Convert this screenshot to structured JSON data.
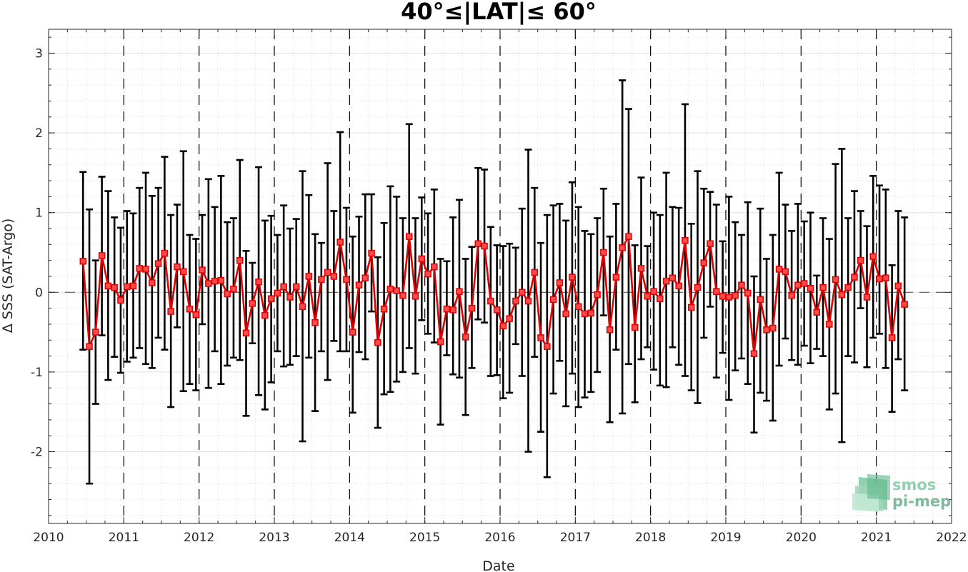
{
  "chart_data": {
    "type": "line",
    "title": "40°≤|LAT|≤ 60°",
    "xlabel": "Date",
    "ylabel": "Δ SSS (SAT-Argo)",
    "xlim": [
      2010,
      2022
    ],
    "ylim": [
      -2.9,
      3.3
    ],
    "x_ticks": [
      2010,
      2011,
      2012,
      2013,
      2014,
      2015,
      2016,
      2017,
      2018,
      2019,
      2020,
      2021,
      2022
    ],
    "y_ticks": [
      -2,
      -1,
      0,
      1,
      2,
      3
    ],
    "year_lines": [
      2011,
      2012,
      2013,
      2014,
      2015,
      2016,
      2017,
      2018,
      2019,
      2020,
      2021
    ],
    "zero_line": 0,
    "grid": "minor dotted",
    "colors": {
      "series": "#e00000",
      "errorbar": "#000000",
      "zero_line": "#555555"
    },
    "series": [
      {
        "start_year": 2010,
        "start_month": 6,
        "y": [
          0.39,
          -0.68,
          -0.5,
          0.46,
          0.08,
          0.06,
          -0.1,
          0.07,
          0.08,
          0.3,
          0.29,
          0.12,
          0.36,
          0.49,
          -0.24,
          0.32,
          0.26,
          -0.21,
          -0.28,
          0.28,
          0.11,
          0.14,
          0.15,
          -0.02,
          0.04,
          0.4,
          -0.51,
          -0.14,
          0.13,
          -0.29,
          -0.08,
          -0.01,
          0.07,
          -0.06,
          0.07,
          -0.18,
          0.2,
          -0.38,
          0.16,
          0.25,
          0.2,
          0.63,
          0.16,
          -0.5,
          0.09,
          0.18,
          0.49,
          -0.63,
          -0.21,
          0.04,
          0.02,
          -0.04,
          0.7,
          -0.05,
          0.42,
          0.23,
          0.32,
          -0.62,
          -0.21,
          -0.22,
          0.01,
          -0.56,
          -0.2,
          0.61,
          0.58,
          -0.11,
          -0.22,
          -0.42,
          -0.33,
          -0.11,
          0.0,
          -0.11,
          0.25,
          -0.57,
          -0.68,
          -0.09,
          0.12,
          -0.27,
          0.19,
          -0.18,
          -0.27,
          -0.26,
          -0.03,
          0.5,
          -0.47,
          0.19,
          0.56,
          0.7,
          -0.44,
          0.3,
          -0.05,
          0.01,
          -0.08,
          0.14,
          0.18,
          0.08,
          0.65,
          -0.19,
          0.06,
          0.37,
          0.61,
          0.01,
          -0.05,
          -0.06,
          -0.04,
          0.09,
          -0.01,
          -0.77,
          -0.09,
          -0.47,
          -0.45,
          0.29,
          0.26,
          -0.04,
          0.09,
          0.11,
          0.05,
          -0.25,
          0.06,
          -0.4,
          0.16,
          -0.03,
          0.06,
          0.19,
          0.4,
          -0.06,
          0.45,
          0.17,
          0.18,
          -0.57,
          0.08,
          -0.15
        ],
        "upper": [
          1.51,
          1.04,
          0.4,
          1.45,
          1.27,
          0.94,
          0.81,
          1.02,
          0.99,
          1.31,
          1.5,
          1.21,
          1.31,
          1.7,
          0.97,
          1.1,
          1.77,
          0.72,
          0.67,
          0.97,
          1.42,
          1.07,
          1.46,
          0.88,
          0.93,
          1.66,
          0.52,
          0.37,
          1.57,
          0.9,
          0.96,
          0.72,
          1.09,
          0.8,
          0.92,
          1.52,
          1.22,
          0.73,
          0.62,
          1.62,
          1.02,
          2.01,
          1.06,
          0.7,
          0.95,
          1.23,
          1.23,
          0.44,
          0.87,
          1.33,
          1.2,
          0.93,
          2.11,
          0.93,
          1.19,
          0.99,
          1.29,
          0.42,
          0.39,
          0.94,
          1.16,
          0.42,
          0.57,
          1.56,
          1.54,
          0.82,
          0.59,
          0.58,
          0.61,
          0.56,
          1.05,
          1.79,
          1.31,
          0.62,
          0.97,
          1.09,
          1.11,
          0.9,
          1.38,
          1.07,
          0.77,
          0.73,
          0.93,
          1.3,
          0.7,
          1.11,
          2.66,
          2.3,
          0.59,
          1.44,
          0.58,
          1.0,
          0.97,
          1.5,
          1.07,
          1.06,
          2.36,
          0.86,
          1.52,
          1.3,
          1.26,
          1.1,
          0.64,
          1.2,
          0.88,
          0.72,
          1.13,
          0.2,
          1.05,
          0.42,
          0.72,
          1.5,
          1.1,
          0.77,
          1.11,
          0.89,
          1.0,
          0.21,
          0.93,
          0.67,
          1.61,
          1.8,
          0.93,
          1.27,
          1.02,
          0.83,
          1.46,
          1.34,
          1.29,
          0.34,
          1.02,
          0.94
        ],
        "lower": [
          -0.72,
          -2.4,
          -1.4,
          -0.54,
          -1.1,
          -0.81,
          -1.01,
          -0.87,
          -0.82,
          -0.7,
          -0.9,
          -0.95,
          -0.57,
          -0.72,
          -1.44,
          -0.44,
          -1.24,
          -1.15,
          -1.23,
          -0.4,
          -1.2,
          -0.74,
          -1.15,
          -0.92,
          -0.82,
          -0.85,
          -1.55,
          -0.64,
          -1.29,
          -1.47,
          -1.13,
          -0.74,
          -0.93,
          -0.91,
          -0.8,
          -1.87,
          -0.82,
          -1.49,
          -0.74,
          -1.1,
          -0.61,
          -0.74,
          -0.74,
          -1.51,
          -0.75,
          -0.84,
          -0.24,
          -1.7,
          -1.28,
          -1.25,
          -1.12,
          -1.0,
          -0.7,
          -1.02,
          -0.35,
          -0.52,
          -0.63,
          -1.66,
          -0.79,
          -1.03,
          -1.07,
          -1.54,
          -0.95,
          -0.34,
          -0.38,
          -1.05,
          -1.04,
          -1.33,
          -1.26,
          -0.65,
          -1.05,
          -2.0,
          -0.81,
          -1.75,
          -2.32,
          -1.27,
          -0.86,
          -1.43,
          -1.02,
          -1.44,
          -1.32,
          -1.25,
          -1.0,
          -0.29,
          -1.63,
          -0.72,
          -1.52,
          -0.9,
          -1.38,
          -0.84,
          -0.69,
          -0.97,
          -1.17,
          -1.19,
          -0.69,
          -0.91,
          -1.05,
          -1.23,
          -1.39,
          -0.57,
          -0.18,
          -1.07,
          -0.76,
          -1.35,
          -0.98,
          -0.83,
          -1.15,
          -1.76,
          -1.26,
          -1.36,
          -1.61,
          -0.92,
          -0.58,
          -0.85,
          -0.91,
          -0.67,
          -0.89,
          -0.71,
          -0.8,
          -1.47,
          -1.27,
          -1.88,
          -0.8,
          -0.88,
          -0.2,
          -0.94,
          -0.57,
          -0.52,
          -0.95,
          -1.5,
          -0.84,
          -1.23
        ]
      }
    ]
  },
  "logo": {
    "line1": "smos",
    "line2": "pi-mep"
  }
}
